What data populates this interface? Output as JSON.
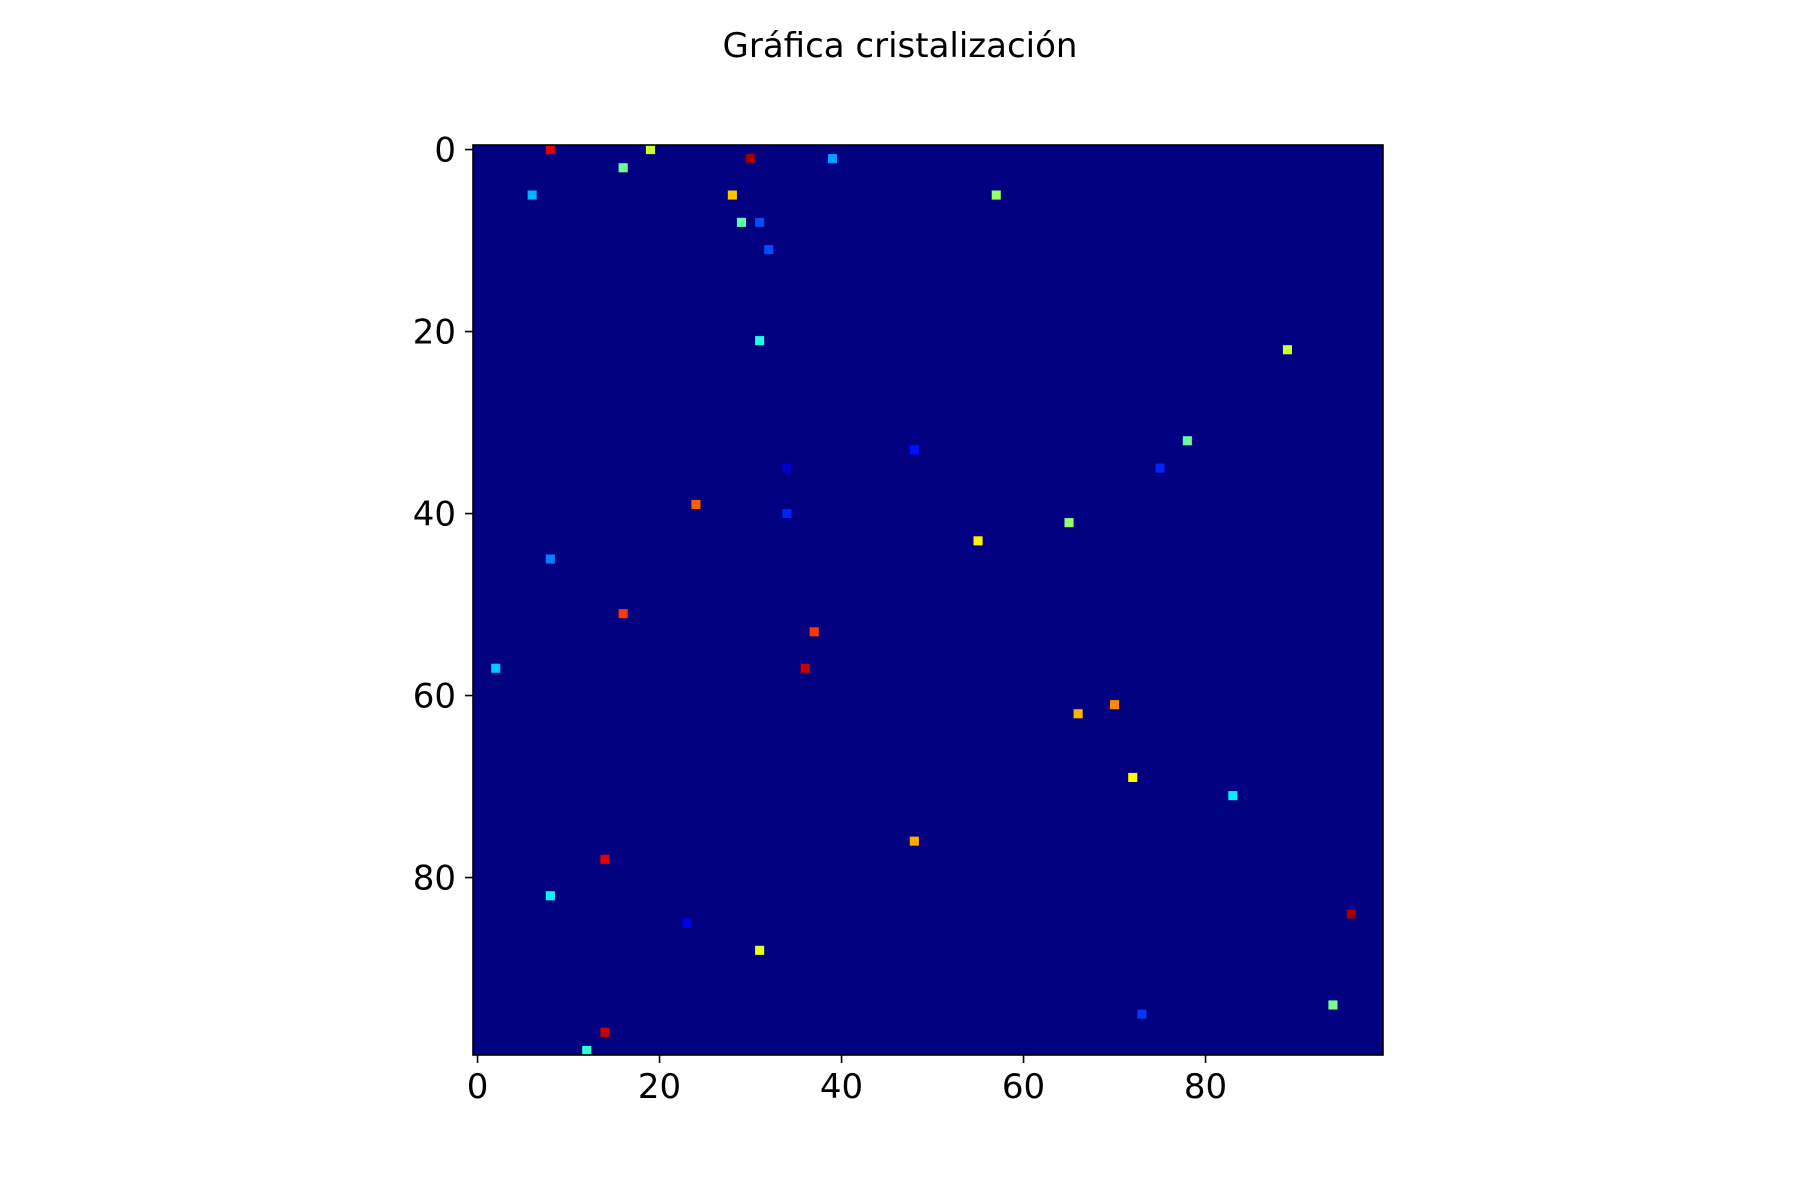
{
  "chart_data": {
    "type": "heatmap",
    "title": "Gráfica cristalización",
    "xlabel": "",
    "ylabel": "",
    "xlim": [
      -0.5,
      99.5
    ],
    "ylim": [
      99.5,
      -0.5
    ],
    "y_axis_inverted": true,
    "grid": false,
    "colormap": "jet",
    "background_value": 0,
    "x_ticks": [
      0,
      20,
      40,
      60,
      80
    ],
    "y_ticks": [
      0,
      20,
      40,
      60,
      80
    ],
    "x_tick_labels": [
      "0",
      "20",
      "40",
      "60",
      "80"
    ],
    "y_tick_labels": [
      "0",
      "20",
      "40",
      "60",
      "80"
    ],
    "cells": [
      {
        "x": 8,
        "y": 0,
        "value": 0.9
      },
      {
        "x": 19,
        "y": 0,
        "value": 0.58
      },
      {
        "x": 30,
        "y": 1,
        "value": 0.97
      },
      {
        "x": 39,
        "y": 1,
        "value": 0.28
      },
      {
        "x": 16,
        "y": 2,
        "value": 0.48
      },
      {
        "x": 6,
        "y": 5,
        "value": 0.3
      },
      {
        "x": 28,
        "y": 5,
        "value": 0.68
      },
      {
        "x": 57,
        "y": 5,
        "value": 0.52
      },
      {
        "x": 29,
        "y": 8,
        "value": 0.46
      },
      {
        "x": 31,
        "y": 8,
        "value": 0.2
      },
      {
        "x": 32,
        "y": 11,
        "value": 0.2
      },
      {
        "x": 31,
        "y": 21,
        "value": 0.4
      },
      {
        "x": 89,
        "y": 22,
        "value": 0.58
      },
      {
        "x": 78,
        "y": 32,
        "value": 0.47
      },
      {
        "x": 48,
        "y": 33,
        "value": 0.14
      },
      {
        "x": 34,
        "y": 35,
        "value": 0.08
      },
      {
        "x": 75,
        "y": 35,
        "value": 0.16
      },
      {
        "x": 24,
        "y": 39,
        "value": 0.78
      },
      {
        "x": 34,
        "y": 40,
        "value": 0.16
      },
      {
        "x": 65,
        "y": 41,
        "value": 0.52
      },
      {
        "x": 55,
        "y": 43,
        "value": 0.64
      },
      {
        "x": 8,
        "y": 45,
        "value": 0.25
      },
      {
        "x": 16,
        "y": 51,
        "value": 0.82
      },
      {
        "x": 37,
        "y": 53,
        "value": 0.82
      },
      {
        "x": 2,
        "y": 57,
        "value": 0.32
      },
      {
        "x": 36,
        "y": 57,
        "value": 0.93
      },
      {
        "x": 70,
        "y": 61,
        "value": 0.74
      },
      {
        "x": 66,
        "y": 62,
        "value": 0.7
      },
      {
        "x": 72,
        "y": 69,
        "value": 0.63
      },
      {
        "x": 83,
        "y": 71,
        "value": 0.36
      },
      {
        "x": 48,
        "y": 76,
        "value": 0.71
      },
      {
        "x": 14,
        "y": 78,
        "value": 0.9
      },
      {
        "x": 8,
        "y": 82,
        "value": 0.37
      },
      {
        "x": 96,
        "y": 84,
        "value": 0.97
      },
      {
        "x": 23,
        "y": 85,
        "value": 0.1
      },
      {
        "x": 31,
        "y": 88,
        "value": 0.6
      },
      {
        "x": 94,
        "y": 94,
        "value": 0.49
      },
      {
        "x": 73,
        "y": 95,
        "value": 0.18
      },
      {
        "x": 14,
        "y": 97,
        "value": 0.93
      },
      {
        "x": 12,
        "y": 99,
        "value": 0.42
      }
    ]
  }
}
